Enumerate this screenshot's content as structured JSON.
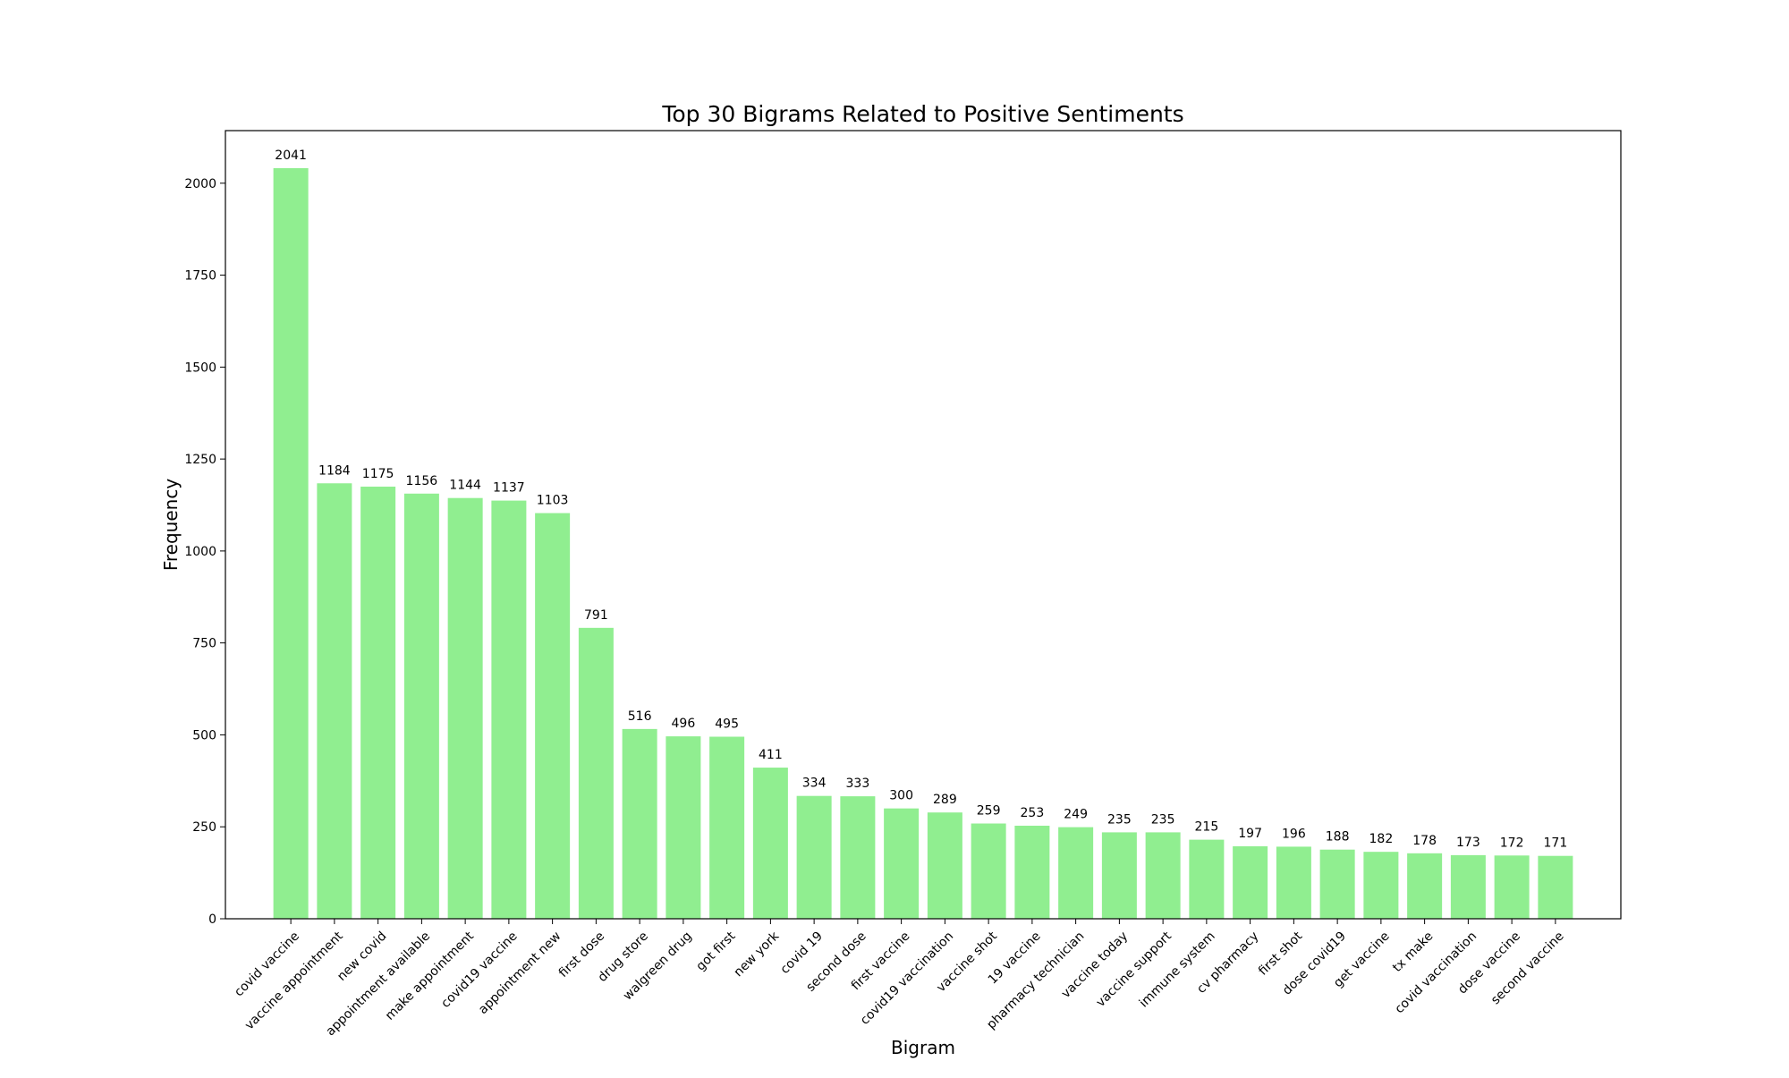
{
  "chart_data": {
    "type": "bar",
    "title": "Top 30 Bigrams Related to Positive Sentiments",
    "xlabel": "Bigram",
    "ylabel": "Frequency",
    "ylim": [
      0,
      2143
    ],
    "yticks": [
      0,
      250,
      500,
      750,
      1000,
      1250,
      1500,
      1750,
      2000
    ],
    "bar_color": "#90ee90",
    "grid": false,
    "categories": [
      "covid vaccine",
      "vaccine appointment",
      "new covid",
      "appointment available",
      "make appointment",
      "covid19 vaccine",
      "appointment new",
      "first dose",
      "drug store",
      "walgreen drug",
      "got first",
      "new york",
      "covid 19",
      "second dose",
      "first vaccine",
      "covid19 vaccination",
      "vaccine shot",
      "19 vaccine",
      "pharmacy technician",
      "vaccine today",
      "vaccine support",
      "immune system",
      "cv pharmacy",
      "first shot",
      "dose covid19",
      "get vaccine",
      "tx make",
      "covid vaccination",
      "dose vaccine",
      "second vaccine"
    ],
    "values": [
      2041,
      1184,
      1175,
      1156,
      1144,
      1137,
      1103,
      791,
      516,
      496,
      495,
      411,
      334,
      333,
      300,
      289,
      259,
      253,
      249,
      235,
      235,
      215,
      197,
      196,
      188,
      182,
      178,
      173,
      172,
      171
    ]
  }
}
